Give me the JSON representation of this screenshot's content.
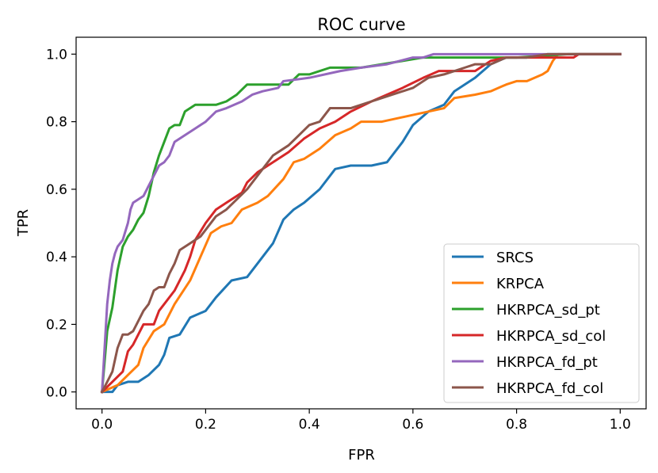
{
  "chart_data": {
    "type": "line",
    "title": "ROC curve",
    "xlabel": "FPR",
    "ylabel": "TPR",
    "xlim": [
      -0.05,
      1.05
    ],
    "ylim": [
      -0.05,
      1.05
    ],
    "xticks": [
      0.0,
      0.2,
      0.4,
      0.6,
      0.8,
      1.0
    ],
    "yticks": [
      0.0,
      0.2,
      0.4,
      0.6,
      0.8,
      1.0
    ],
    "xtick_labels": [
      "0.0",
      "0.2",
      "0.4",
      "0.6",
      "0.8",
      "1.0"
    ],
    "ytick_labels": [
      "0.0",
      "0.2",
      "0.4",
      "0.6",
      "0.8",
      "1.0"
    ],
    "grid": false,
    "legend_position": "bottom-right",
    "series": [
      {
        "name": "SRCS",
        "color": "#1f77b4",
        "points": [
          [
            0.0,
            0.0
          ],
          [
            0.02,
            0.0
          ],
          [
            0.03,
            0.02
          ],
          [
            0.05,
            0.03
          ],
          [
            0.07,
            0.03
          ],
          [
            0.09,
            0.05
          ],
          [
            0.11,
            0.08
          ],
          [
            0.12,
            0.11
          ],
          [
            0.13,
            0.16
          ],
          [
            0.15,
            0.17
          ],
          [
            0.17,
            0.22
          ],
          [
            0.2,
            0.24
          ],
          [
            0.22,
            0.28
          ],
          [
            0.25,
            0.33
          ],
          [
            0.28,
            0.34
          ],
          [
            0.3,
            0.38
          ],
          [
            0.33,
            0.44
          ],
          [
            0.35,
            0.51
          ],
          [
            0.37,
            0.54
          ],
          [
            0.39,
            0.56
          ],
          [
            0.42,
            0.6
          ],
          [
            0.45,
            0.66
          ],
          [
            0.48,
            0.67
          ],
          [
            0.52,
            0.67
          ],
          [
            0.55,
            0.68
          ],
          [
            0.58,
            0.74
          ],
          [
            0.6,
            0.79
          ],
          [
            0.63,
            0.83
          ],
          [
            0.66,
            0.85
          ],
          [
            0.68,
            0.89
          ],
          [
            0.72,
            0.93
          ],
          [
            0.75,
            0.97
          ],
          [
            0.78,
            0.99
          ],
          [
            0.82,
            0.99
          ],
          [
            0.86,
            1.0
          ],
          [
            1.0,
            1.0
          ]
        ]
      },
      {
        "name": "KRPCA",
        "color": "#ff7f0e",
        "points": [
          [
            0.0,
            0.0
          ],
          [
            0.03,
            0.02
          ],
          [
            0.05,
            0.05
          ],
          [
            0.07,
            0.08
          ],
          [
            0.08,
            0.13
          ],
          [
            0.1,
            0.18
          ],
          [
            0.12,
            0.2
          ],
          [
            0.14,
            0.26
          ],
          [
            0.17,
            0.33
          ],
          [
            0.19,
            0.4
          ],
          [
            0.21,
            0.47
          ],
          [
            0.23,
            0.49
          ],
          [
            0.25,
            0.5
          ],
          [
            0.27,
            0.54
          ],
          [
            0.3,
            0.56
          ],
          [
            0.32,
            0.58
          ],
          [
            0.35,
            0.63
          ],
          [
            0.37,
            0.68
          ],
          [
            0.39,
            0.69
          ],
          [
            0.42,
            0.72
          ],
          [
            0.45,
            0.76
          ],
          [
            0.48,
            0.78
          ],
          [
            0.5,
            0.8
          ],
          [
            0.54,
            0.8
          ],
          [
            0.57,
            0.81
          ],
          [
            0.6,
            0.82
          ],
          [
            0.63,
            0.83
          ],
          [
            0.66,
            0.84
          ],
          [
            0.68,
            0.87
          ],
          [
            0.72,
            0.88
          ],
          [
            0.75,
            0.89
          ],
          [
            0.78,
            0.91
          ],
          [
            0.8,
            0.92
          ],
          [
            0.82,
            0.92
          ],
          [
            0.85,
            0.94
          ],
          [
            0.86,
            0.95
          ],
          [
            0.87,
            0.98
          ],
          [
            0.88,
            1.0
          ],
          [
            1.0,
            1.0
          ]
        ]
      },
      {
        "name": "HKRPCA_sd_pt",
        "color": "#2ca02c",
        "points": [
          [
            0.0,
            0.0
          ],
          [
            0.01,
            0.18
          ],
          [
            0.02,
            0.25
          ],
          [
            0.03,
            0.36
          ],
          [
            0.04,
            0.43
          ],
          [
            0.05,
            0.46
          ],
          [
            0.06,
            0.48
          ],
          [
            0.07,
            0.51
          ],
          [
            0.08,
            0.53
          ],
          [
            0.09,
            0.58
          ],
          [
            0.1,
            0.65
          ],
          [
            0.11,
            0.7
          ],
          [
            0.12,
            0.74
          ],
          [
            0.13,
            0.78
          ],
          [
            0.14,
            0.79
          ],
          [
            0.15,
            0.79
          ],
          [
            0.16,
            0.83
          ],
          [
            0.18,
            0.85
          ],
          [
            0.22,
            0.85
          ],
          [
            0.24,
            0.86
          ],
          [
            0.26,
            0.88
          ],
          [
            0.28,
            0.91
          ],
          [
            0.33,
            0.91
          ],
          [
            0.36,
            0.91
          ],
          [
            0.38,
            0.94
          ],
          [
            0.4,
            0.94
          ],
          [
            0.44,
            0.96
          ],
          [
            0.5,
            0.96
          ],
          [
            0.54,
            0.97
          ],
          [
            0.58,
            0.98
          ],
          [
            0.62,
            0.99
          ],
          [
            0.75,
            0.99
          ],
          [
            0.8,
            0.99
          ],
          [
            0.9,
            1.0
          ],
          [
            1.0,
            1.0
          ]
        ]
      },
      {
        "name": "HKRPCA_sd_col",
        "color": "#d62728",
        "points": [
          [
            0.0,
            0.0
          ],
          [
            0.02,
            0.03
          ],
          [
            0.04,
            0.06
          ],
          [
            0.05,
            0.12
          ],
          [
            0.06,
            0.14
          ],
          [
            0.08,
            0.2
          ],
          [
            0.1,
            0.2
          ],
          [
            0.11,
            0.24
          ],
          [
            0.12,
            0.26
          ],
          [
            0.14,
            0.3
          ],
          [
            0.16,
            0.36
          ],
          [
            0.17,
            0.4
          ],
          [
            0.18,
            0.45
          ],
          [
            0.2,
            0.5
          ],
          [
            0.22,
            0.54
          ],
          [
            0.24,
            0.56
          ],
          [
            0.27,
            0.59
          ],
          [
            0.28,
            0.62
          ],
          [
            0.3,
            0.65
          ],
          [
            0.33,
            0.68
          ],
          [
            0.36,
            0.71
          ],
          [
            0.39,
            0.75
          ],
          [
            0.42,
            0.78
          ],
          [
            0.45,
            0.8
          ],
          [
            0.48,
            0.83
          ],
          [
            0.52,
            0.86
          ],
          [
            0.55,
            0.88
          ],
          [
            0.58,
            0.9
          ],
          [
            0.62,
            0.93
          ],
          [
            0.65,
            0.95
          ],
          [
            0.7,
            0.95
          ],
          [
            0.72,
            0.95
          ],
          [
            0.75,
            0.98
          ],
          [
            0.78,
            0.99
          ],
          [
            0.85,
            0.99
          ],
          [
            0.91,
            0.99
          ],
          [
            0.92,
            1.0
          ],
          [
            1.0,
            1.0
          ]
        ]
      },
      {
        "name": "HKRPCA_fd_pt",
        "color": "#9467bd",
        "points": [
          [
            0.0,
            0.0
          ],
          [
            0.01,
            0.26
          ],
          [
            0.015,
            0.33
          ],
          [
            0.02,
            0.38
          ],
          [
            0.025,
            0.41
          ],
          [
            0.03,
            0.43
          ],
          [
            0.04,
            0.45
          ],
          [
            0.05,
            0.5
          ],
          [
            0.055,
            0.54
          ],
          [
            0.06,
            0.56
          ],
          [
            0.07,
            0.57
          ],
          [
            0.08,
            0.58
          ],
          [
            0.09,
            0.61
          ],
          [
            0.1,
            0.64
          ],
          [
            0.11,
            0.67
          ],
          [
            0.12,
            0.68
          ],
          [
            0.13,
            0.7
          ],
          [
            0.14,
            0.74
          ],
          [
            0.16,
            0.76
          ],
          [
            0.18,
            0.78
          ],
          [
            0.2,
            0.8
          ],
          [
            0.22,
            0.83
          ],
          [
            0.24,
            0.84
          ],
          [
            0.27,
            0.86
          ],
          [
            0.29,
            0.88
          ],
          [
            0.31,
            0.89
          ],
          [
            0.34,
            0.9
          ],
          [
            0.35,
            0.92
          ],
          [
            0.4,
            0.93
          ],
          [
            0.46,
            0.95
          ],
          [
            0.5,
            0.96
          ],
          [
            0.55,
            0.97
          ],
          [
            0.6,
            0.99
          ],
          [
            0.62,
            0.99
          ],
          [
            0.64,
            1.0
          ],
          [
            1.0,
            1.0
          ]
        ]
      },
      {
        "name": "HKRPCA_fd_col",
        "color": "#8c564b",
        "points": [
          [
            0.0,
            0.0
          ],
          [
            0.01,
            0.03
          ],
          [
            0.02,
            0.06
          ],
          [
            0.03,
            0.13
          ],
          [
            0.04,
            0.17
          ],
          [
            0.05,
            0.17
          ],
          [
            0.06,
            0.18
          ],
          [
            0.07,
            0.21
          ],
          [
            0.08,
            0.24
          ],
          [
            0.09,
            0.26
          ],
          [
            0.1,
            0.3
          ],
          [
            0.11,
            0.31
          ],
          [
            0.12,
            0.31
          ],
          [
            0.13,
            0.35
          ],
          [
            0.14,
            0.38
          ],
          [
            0.15,
            0.42
          ],
          [
            0.17,
            0.44
          ],
          [
            0.19,
            0.46
          ],
          [
            0.2,
            0.48
          ],
          [
            0.22,
            0.52
          ],
          [
            0.24,
            0.54
          ],
          [
            0.26,
            0.57
          ],
          [
            0.28,
            0.6
          ],
          [
            0.3,
            0.64
          ],
          [
            0.33,
            0.7
          ],
          [
            0.36,
            0.73
          ],
          [
            0.38,
            0.76
          ],
          [
            0.4,
            0.79
          ],
          [
            0.42,
            0.8
          ],
          [
            0.44,
            0.84
          ],
          [
            0.48,
            0.84
          ],
          [
            0.52,
            0.86
          ],
          [
            0.56,
            0.88
          ],
          [
            0.6,
            0.9
          ],
          [
            0.63,
            0.93
          ],
          [
            0.66,
            0.94
          ],
          [
            0.7,
            0.96
          ],
          [
            0.72,
            0.97
          ],
          [
            0.75,
            0.97
          ],
          [
            0.78,
            0.99
          ],
          [
            0.82,
            0.99
          ],
          [
            0.86,
            1.0
          ],
          [
            1.0,
            1.0
          ]
        ]
      }
    ]
  }
}
